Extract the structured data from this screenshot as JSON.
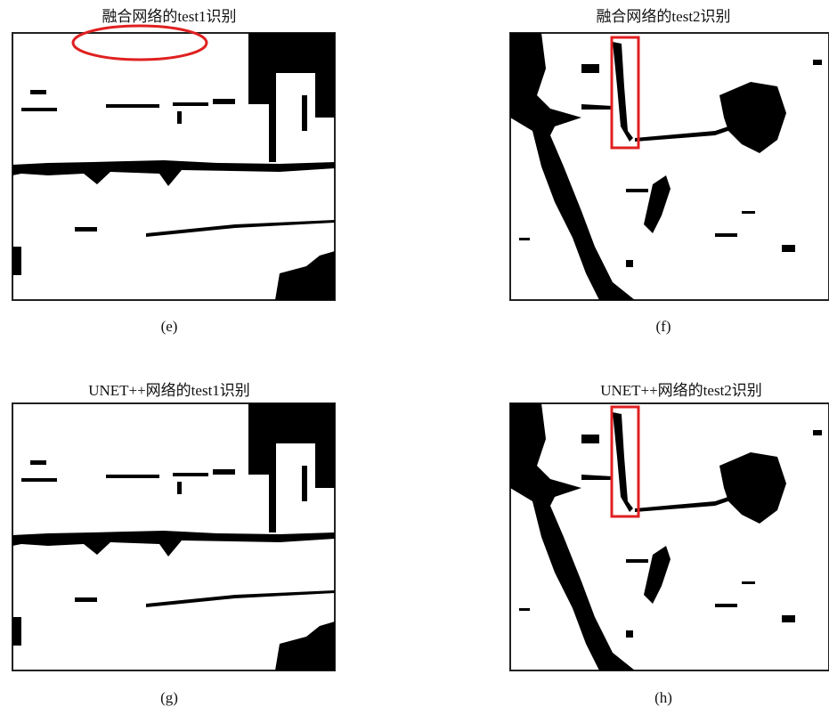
{
  "panels": [
    {
      "title": "融合网络的test1识别",
      "caption": "(e)"
    },
    {
      "title": "融合网络的test2识别",
      "caption": "(f)"
    },
    {
      "title": "UNET++网络的test1识别",
      "caption": "(g)"
    },
    {
      "title": "UNET++网络的test2识别",
      "caption": "(h)"
    }
  ]
}
